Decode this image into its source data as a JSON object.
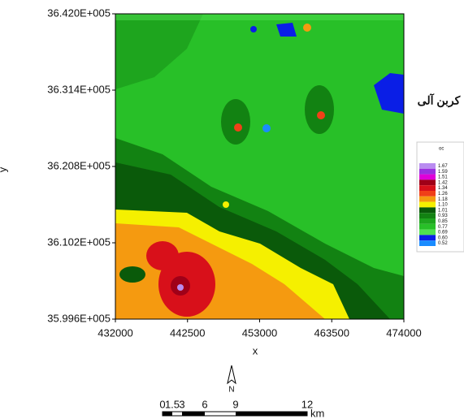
{
  "map": {
    "y_label": "y",
    "x_label": "x",
    "yticks": [
      "36.420E+005",
      "36.314E+005",
      "36.208E+005",
      "36.102E+005",
      "35.996E+005"
    ],
    "xticks": [
      "432000",
      "442500",
      "453000",
      "463500",
      "474000"
    ],
    "legend": {
      "title": "کربن آلی",
      "unit": "oc",
      "items": [
        {
          "label": "1.67",
          "color": "#b98cf0"
        },
        {
          "label": "1.59",
          "color": "#9b30e0"
        },
        {
          "label": "1.51",
          "color": "#e000d8"
        },
        {
          "label": "1.42",
          "color": "#a00018"
        },
        {
          "label": "1.34",
          "color": "#d8101a"
        },
        {
          "label": "1.26",
          "color": "#f04018"
        },
        {
          "label": "1.18",
          "color": "#f59a10"
        },
        {
          "label": "1.10",
          "color": "#f5f000"
        },
        {
          "label": "1.01",
          "color": "#0a5a0a"
        },
        {
          "label": "0.93",
          "color": "#128212"
        },
        {
          "label": "0.85",
          "color": "#1ea51e"
        },
        {
          "label": "0.77",
          "color": "#28c028"
        },
        {
          "label": "0.69",
          "color": "#50e050"
        },
        {
          "label": "0.60",
          "color": "#0a1ee6"
        },
        {
          "label": "0.52",
          "color": "#1a8cff"
        }
      ]
    },
    "north": "N",
    "scale_labels": [
      "0",
      "1.5",
      "3",
      "6",
      "9",
      "12"
    ],
    "scale_unit": "km"
  }
}
